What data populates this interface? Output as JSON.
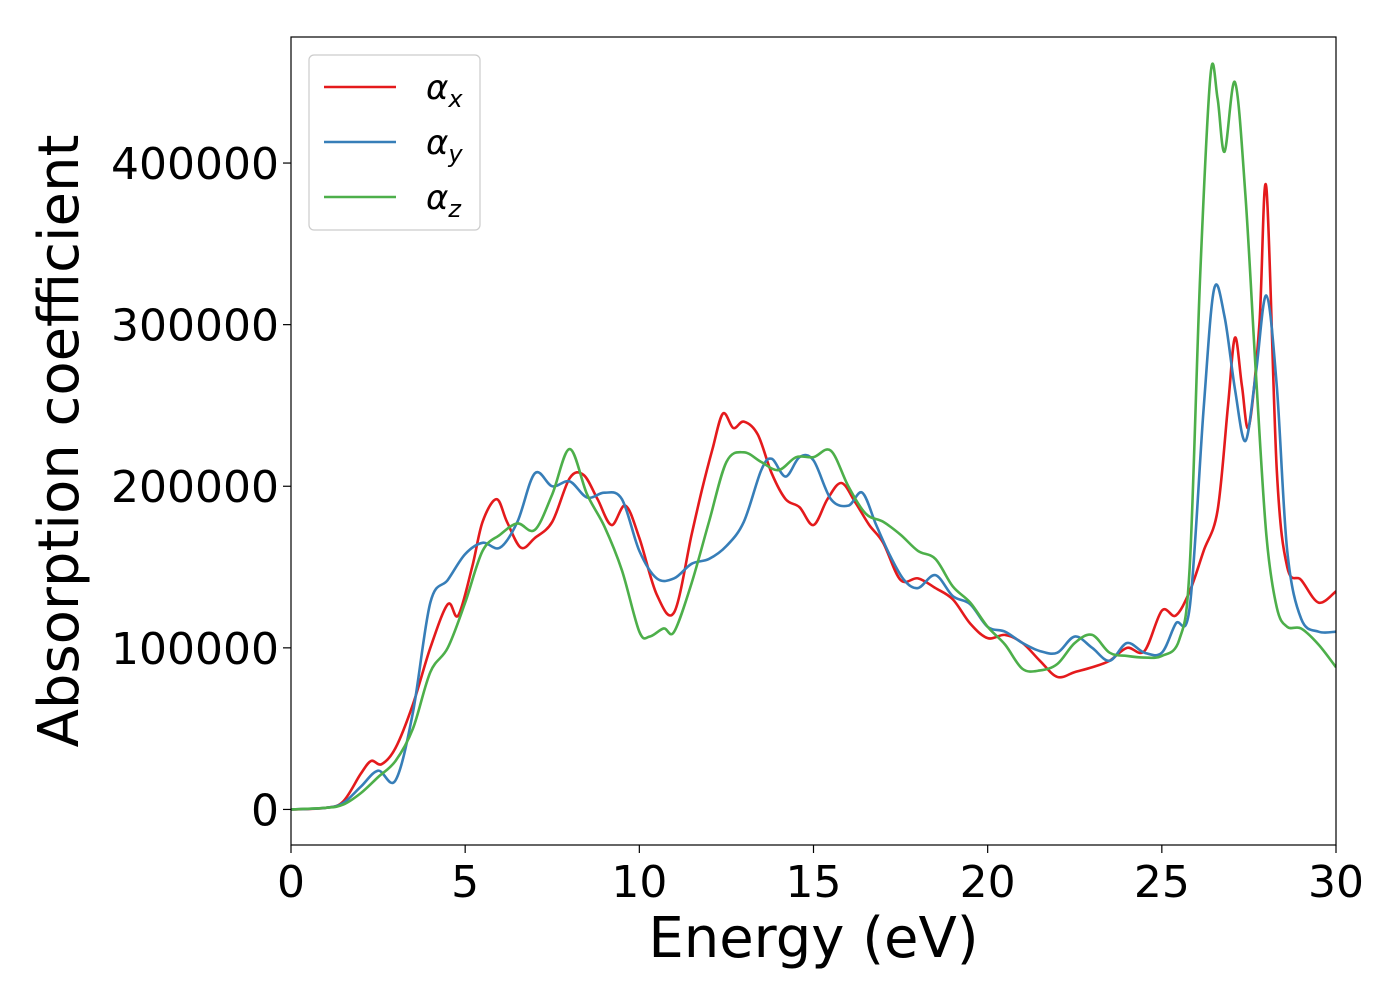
{
  "chart_data": {
    "type": "line",
    "xlabel": "Energy (eV)",
    "ylabel": "Absorption coefficient",
    "xlim": [
      0,
      30
    ],
    "ylim": [
      -22000,
      478000
    ],
    "xticks": [
      0,
      5,
      10,
      15,
      20,
      25,
      30
    ],
    "yticks": [
      0,
      100000,
      200000,
      300000,
      400000
    ],
    "grid": false,
    "legend_position": "top-left",
    "series": [
      {
        "name": "α_x",
        "symbol": "α",
        "subscript": "x",
        "color": "#e41a1c",
        "x": [
          0,
          1,
          1.5,
          2,
          2.3,
          2.6,
          3.0,
          3.5,
          4.0,
          4.5,
          4.8,
          5.2,
          5.5,
          5.9,
          6.2,
          6.6,
          7.0,
          7.5,
          8.0,
          8.4,
          8.8,
          9.2,
          9.6,
          10.0,
          10.5,
          11.0,
          11.5,
          11.8,
          12.1,
          12.4,
          12.7,
          13.0,
          13.4,
          13.8,
          14.2,
          14.6,
          15.0,
          15.4,
          15.8,
          16.2,
          16.6,
          17.0,
          17.5,
          18.0,
          18.5,
          19.0,
          19.5,
          20.0,
          20.5,
          21.0,
          21.5,
          22.0,
          22.5,
          23.0,
          23.5,
          24.0,
          24.5,
          25.0,
          25.4,
          25.8,
          26.2,
          26.6,
          26.9,
          27.1,
          27.3,
          27.5,
          27.8,
          28.0,
          28.3,
          28.6,
          29.0,
          29.5,
          30.0
        ],
        "y": [
          0,
          1000,
          5000,
          22000,
          30000,
          28000,
          38000,
          65000,
          100000,
          127000,
          120000,
          150000,
          178000,
          192000,
          178000,
          162000,
          168000,
          178000,
          205000,
          207000,
          192000,
          176000,
          188000,
          168000,
          133000,
          122000,
          170000,
          198000,
          223000,
          245000,
          236000,
          240000,
          232000,
          208000,
          192000,
          187000,
          176000,
          192000,
          202000,
          190000,
          176000,
          165000,
          142000,
          143000,
          137000,
          130000,
          115000,
          106000,
          108000,
          103000,
          92000,
          82000,
          85000,
          88000,
          92000,
          100000,
          98000,
          123000,
          120000,
          135000,
          160000,
          185000,
          250000,
          292000,
          262000,
          237000,
          300000,
          385000,
          210000,
          150000,
          142000,
          128000,
          135000
        ]
      },
      {
        "name": "α_y",
        "symbol": "α",
        "subscript": "y",
        "color": "#377eb8",
        "x": [
          0,
          1,
          1.5,
          2,
          2.5,
          3.0,
          3.5,
          4.0,
          4.5,
          5.0,
          5.5,
          6.0,
          6.5,
          7.0,
          7.5,
          8.0,
          8.5,
          9.0,
          9.5,
          10.0,
          10.5,
          11.0,
          11.5,
          12.0,
          12.5,
          13.0,
          13.5,
          13.8,
          14.2,
          14.6,
          15.0,
          15.5,
          16.0,
          16.4,
          16.8,
          17.2,
          17.6,
          18.0,
          18.5,
          19.0,
          19.5,
          20.0,
          20.5,
          21.0,
          21.5,
          22.0,
          22.5,
          23.0,
          23.5,
          24.0,
          24.5,
          25.0,
          25.4,
          25.8,
          26.2,
          26.5,
          26.8,
          27.1,
          27.4,
          27.7,
          28.0,
          28.3,
          28.6,
          29.0,
          29.5,
          30.0
        ],
        "y": [
          0,
          1000,
          4000,
          14000,
          24000,
          18000,
          60000,
          128000,
          142000,
          158000,
          165000,
          162000,
          178000,
          208000,
          200000,
          203000,
          193000,
          196000,
          192000,
          160000,
          143000,
          143000,
          152000,
          155000,
          163000,
          178000,
          210000,
          217000,
          206000,
          218000,
          216000,
          192000,
          188000,
          196000,
          176000,
          157000,
          142000,
          137000,
          145000,
          132000,
          127000,
          113000,
          110000,
          103000,
          98000,
          97000,
          107000,
          100000,
          92000,
          103000,
          97000,
          97000,
          115000,
          125000,
          248000,
          322000,
          305000,
          260000,
          228000,
          270000,
          318000,
          262000,
          160000,
          118000,
          110000,
          110000
        ]
      },
      {
        "name": "α_z",
        "symbol": "α",
        "subscript": "z",
        "color": "#4daf4a",
        "x": [
          0,
          1,
          1.5,
          2,
          2.5,
          3.0,
          3.5,
          4.0,
          4.5,
          5.0,
          5.5,
          6.0,
          6.5,
          7.0,
          7.5,
          8.0,
          8.5,
          9.0,
          9.5,
          10.0,
          10.3,
          10.7,
          11.0,
          11.5,
          12.0,
          12.5,
          13.0,
          13.5,
          14.0,
          14.5,
          15.0,
          15.5,
          16.0,
          16.5,
          17.0,
          17.5,
          18.0,
          18.5,
          19.0,
          19.5,
          20.0,
          20.5,
          21.0,
          21.5,
          22.0,
          22.5,
          23.0,
          23.5,
          24.0,
          24.5,
          25.0,
          25.5,
          25.8,
          26.1,
          26.4,
          26.6,
          26.8,
          27.1,
          27.4,
          27.7,
          28.0,
          28.3,
          28.6,
          29.0,
          29.5,
          30.0
        ],
        "y": [
          0,
          1000,
          3000,
          10000,
          20000,
          30000,
          50000,
          85000,
          100000,
          128000,
          160000,
          170000,
          177000,
          173000,
          195000,
          223000,
          195000,
          175000,
          148000,
          110000,
          107000,
          112000,
          110000,
          140000,
          178000,
          215000,
          221000,
          215000,
          210000,
          218000,
          218000,
          222000,
          200000,
          183000,
          178000,
          170000,
          160000,
          155000,
          138000,
          128000,
          113000,
          102000,
          87000,
          86000,
          90000,
          103000,
          108000,
          97000,
          95000,
          94000,
          95000,
          105000,
          150000,
          330000,
          455000,
          440000,
          407000,
          450000,
          380000,
          270000,
          170000,
          125000,
          113000,
          112000,
          102000,
          88000
        ]
      }
    ]
  }
}
